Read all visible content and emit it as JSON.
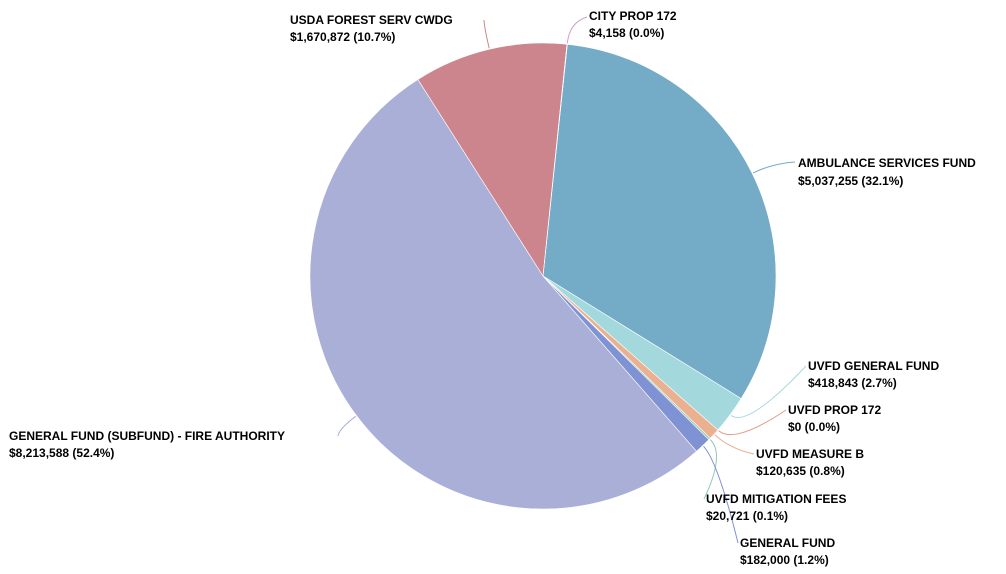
{
  "chart_data": {
    "type": "pie",
    "title": "",
    "slices": [
      {
        "name": "AMBULANCE SERVICES FUND",
        "value": 5037255,
        "value_label": "$5,037,255 (32.1%)",
        "color": "#74abc6"
      },
      {
        "name": "UVFD GENERAL FUND",
        "value": 418843,
        "value_label": "$418,843 (2.7%)",
        "color": "#a3d8dd"
      },
      {
        "name": "UVFD PROP 172",
        "value": 0,
        "value_label": "$0 (0.0%)",
        "color": "#e39a86"
      },
      {
        "name": "UVFD MEASURE B",
        "value": 120635,
        "value_label": "$120,635 (0.8%)",
        "color": "#ebb08f"
      },
      {
        "name": "UVFD MITIGATION FEES",
        "value": 20721,
        "value_label": "$20,721 (0.1%)",
        "color": "#8fc8b0"
      },
      {
        "name": "GENERAL FUND",
        "value": 182000,
        "value_label": "$182,000 (1.2%)",
        "color": "#7f92d4"
      },
      {
        "name": "GENERAL FUND (SUBFUND) - FIRE AUTHORITY",
        "value": 8213588,
        "value_label": "$8,213,588 (52.4%)",
        "color": "#aaafd8"
      },
      {
        "name": "USDA FOREST SERV CWDG",
        "value": 1670872,
        "value_label": "$1,670,872 (10.7%)",
        "color": "#cd858d"
      },
      {
        "name": "CITY PROP 172",
        "value": 4158,
        "value_label": "$4,158 (0.0%)",
        "color": "#d0a0c8"
      }
    ]
  }
}
